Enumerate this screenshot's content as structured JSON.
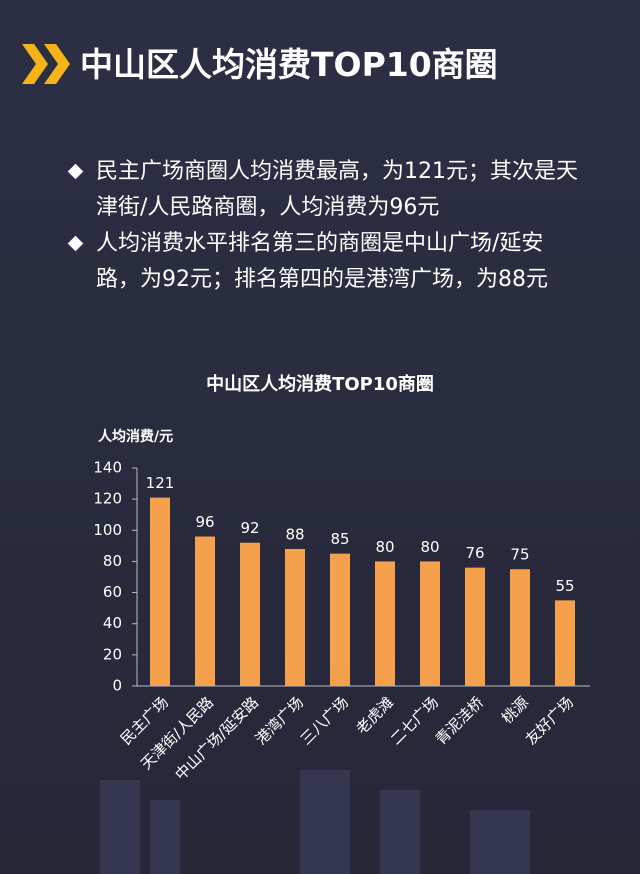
{
  "header": {
    "title": "中山区人均消费TOP10商圈"
  },
  "bullets": [
    "民主广场商圈人均消费最高，为121元；其次是天津街/人民路商圈，人均消费为96元",
    "人均消费水平排名第三的商圈是中山广场/延安路，为92元；排名第四的是港湾广场，为88元"
  ],
  "chart_data": {
    "type": "bar",
    "title": "中山区人均消费TOP10商圈",
    "y_label": "人均消费/元",
    "categories": [
      "民主广场",
      "天津街/人民路",
      "中山广场/延安路",
      "港湾广场",
      "三八广场",
      "老虎滩",
      "二七广场",
      "青泥洼桥",
      "桃源",
      "友好广场"
    ],
    "values": [
      121,
      96,
      92,
      88,
      85,
      80,
      80,
      76,
      75,
      55
    ],
    "color": "#f5a04a",
    "ylim": [
      0,
      140
    ],
    "yticks": [
      0,
      20,
      40,
      60,
      80,
      100,
      120,
      140
    ],
    "grid": false
  }
}
